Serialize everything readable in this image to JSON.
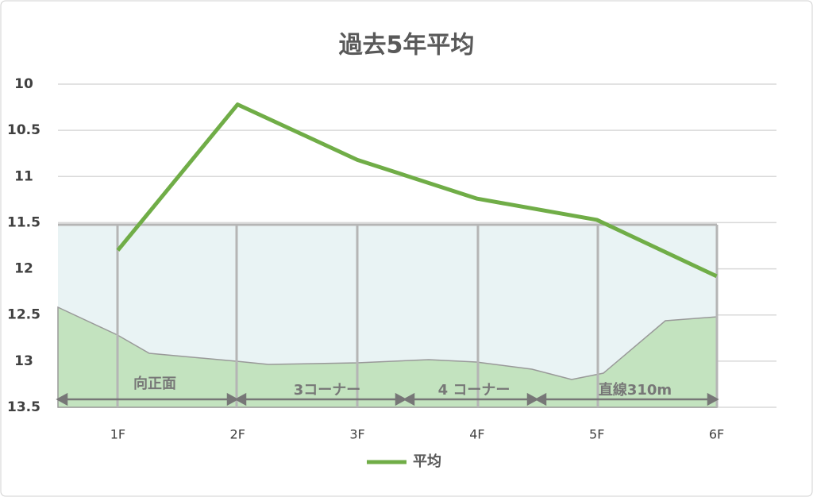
{
  "chart_data": {
    "type": "line",
    "title": "過去5年平均",
    "categories": [
      "1F",
      "2F",
      "3F",
      "4F",
      "5F",
      "6F"
    ],
    "series": [
      {
        "name": "平均",
        "color": "#70ad47",
        "values": [
          11.8,
          10.22,
          10.82,
          11.24,
          11.47,
          12.08
        ]
      }
    ],
    "ylim": [
      10,
      13.5
    ],
    "yticks": [
      10,
      10.5,
      11,
      11.5,
      12,
      12.5,
      13,
      13.5
    ],
    "y_reversed": true,
    "grid": true,
    "legend": "bottom",
    "annotations": [
      "向正面",
      "3コーナー",
      "4 コーナー",
      "直線310m"
    ]
  }
}
